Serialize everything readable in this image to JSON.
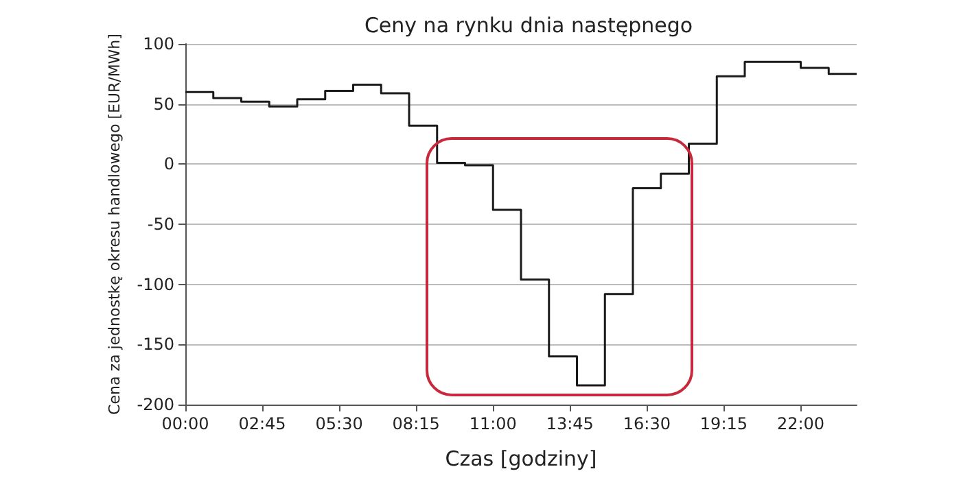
{
  "chart_data": {
    "type": "step",
    "title": "Ceny na rynku dnia następnego",
    "xlabel": "Czas [godziny]",
    "ylabel": "Cena za jednostkę okresu handlowego [EUR/MWh]",
    "x": [
      0,
      1,
      2,
      3,
      4,
      5,
      6,
      7,
      8,
      9,
      10,
      11,
      12,
      13,
      14,
      15,
      16,
      17,
      18,
      19,
      20,
      21,
      22,
      23,
      24
    ],
    "values": [
      60,
      55,
      52,
      48,
      54,
      61,
      66,
      59,
      32,
      1,
      -1,
      -38,
      -96,
      -160,
      -184,
      -108,
      -20,
      -8,
      17,
      73,
      85,
      85,
      80,
      75,
      75
    ],
    "color": "#1a1a1a",
    "xlim": [
      0,
      24
    ],
    "xticks": [
      {
        "value": 0,
        "label": "00:00"
      },
      {
        "value": 2.75,
        "label": "02:45"
      },
      {
        "value": 5.5,
        "label": "05:30"
      },
      {
        "value": 8.25,
        "label": "08:15"
      },
      {
        "value": 11,
        "label": "11:00"
      },
      {
        "value": 13.75,
        "label": "13:45"
      },
      {
        "value": 16.5,
        "label": "16:30"
      },
      {
        "value": 19.25,
        "label": "19:15"
      },
      {
        "value": 22,
        "label": "22:00"
      }
    ],
    "ylim": [
      -200,
      100
    ],
    "yticks": [
      -200,
      -150,
      -100,
      -50,
      0,
      50,
      100
    ],
    "grid": "y",
    "marker": "none",
    "line_style": "solid"
  }
}
